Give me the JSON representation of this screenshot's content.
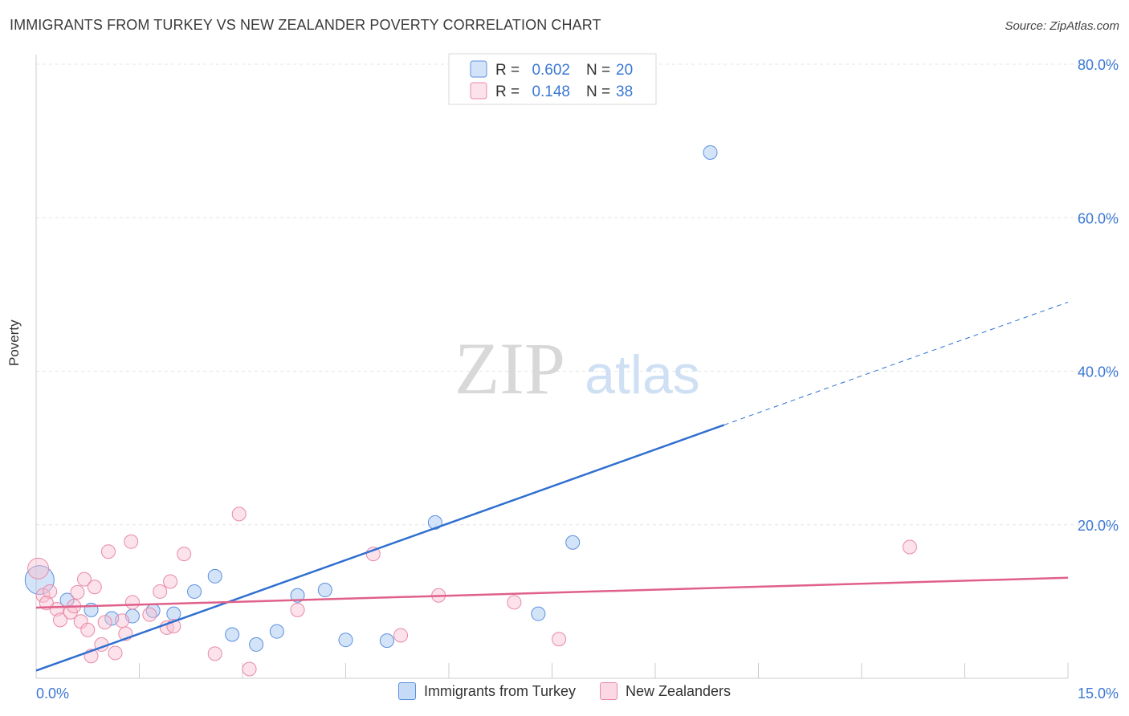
{
  "chart_data": {
    "type": "scatter",
    "title": "IMMIGRANTS FROM TURKEY VS NEW ZEALANDER POVERTY CORRELATION CHART",
    "source": "Source: ZipAtlas.com",
    "ylabel": "Poverty",
    "watermark": {
      "zip": "ZIP",
      "atlas": "atlas"
    },
    "xlim": [
      0,
      15
    ],
    "ylim": [
      0,
      80
    ],
    "x_tick_labels": [
      "0.0%",
      "15.0%"
    ],
    "y_ticks": [
      20,
      40,
      60,
      80
    ],
    "y_tick_labels": [
      "20.0%",
      "40.0%",
      "60.0%",
      "80.0%"
    ],
    "legend": {
      "r_label": "R =",
      "n_label": "N =",
      "entries": [
        {
          "r": "0.602",
          "n": "20"
        },
        {
          "r": "0.148",
          "n": "38"
        }
      ]
    },
    "series": [
      {
        "name": "Immigrants from Turkey",
        "color": "#5b8fe0",
        "fill": "rgba(160,195,240,0.45)",
        "line_color": "#2f6fd0",
        "trend": {
          "x0": 0,
          "y0": 1.0,
          "x1": 10.0,
          "y1": 33.0,
          "x_ext": 15,
          "y_ext": 49.0
        },
        "points": [
          {
            "x": 0.05,
            "y": 12.8,
            "r": 18
          },
          {
            "x": 0.45,
            "y": 10.2
          },
          {
            "x": 0.8,
            "y": 8.9
          },
          {
            "x": 1.1,
            "y": 7.8
          },
          {
            "x": 1.4,
            "y": 8.1
          },
          {
            "x": 1.7,
            "y": 8.8
          },
          {
            "x": 2.0,
            "y": 8.4
          },
          {
            "x": 2.3,
            "y": 11.3
          },
          {
            "x": 2.6,
            "y": 13.3
          },
          {
            "x": 2.85,
            "y": 5.7
          },
          {
            "x": 3.2,
            "y": 4.4
          },
          {
            "x": 3.5,
            "y": 6.1
          },
          {
            "x": 3.8,
            "y": 10.8
          },
          {
            "x": 4.2,
            "y": 11.5
          },
          {
            "x": 4.5,
            "y": 5.0
          },
          {
            "x": 5.1,
            "y": 4.9
          },
          {
            "x": 5.8,
            "y": 20.3
          },
          {
            "x": 7.3,
            "y": 8.4
          },
          {
            "x": 7.8,
            "y": 17.7
          },
          {
            "x": 9.8,
            "y": 68.5
          }
        ]
      },
      {
        "name": "New Zealanders",
        "color": "#e88aa8",
        "fill": "rgba(248,190,208,0.45)",
        "line_color": "#e0608a",
        "trend": {
          "x0": 0,
          "y0": 9.2,
          "x1": 15,
          "y1": 13.1
        },
        "points": [
          {
            "x": 0.03,
            "y": 14.3,
            "r": 13
          },
          {
            "x": 0.1,
            "y": 10.8
          },
          {
            "x": 0.2,
            "y": 11.3
          },
          {
            "x": 0.3,
            "y": 9.0
          },
          {
            "x": 0.35,
            "y": 7.6
          },
          {
            "x": 0.5,
            "y": 8.6
          },
          {
            "x": 0.55,
            "y": 9.4
          },
          {
            "x": 0.6,
            "y": 11.2
          },
          {
            "x": 0.65,
            "y": 7.4
          },
          {
            "x": 0.7,
            "y": 12.9
          },
          {
            "x": 0.75,
            "y": 6.3
          },
          {
            "x": 0.8,
            "y": 2.9
          },
          {
            "x": 0.85,
            "y": 11.9
          },
          {
            "x": 0.95,
            "y": 4.4
          },
          {
            "x": 1.0,
            "y": 7.3
          },
          {
            "x": 1.05,
            "y": 16.5
          },
          {
            "x": 1.15,
            "y": 3.3
          },
          {
            "x": 1.25,
            "y": 7.5
          },
          {
            "x": 1.3,
            "y": 5.8
          },
          {
            "x": 1.38,
            "y": 17.8
          },
          {
            "x": 1.4,
            "y": 9.9
          },
          {
            "x": 1.65,
            "y": 8.3
          },
          {
            "x": 1.8,
            "y": 11.3
          },
          {
            "x": 1.9,
            "y": 6.6
          },
          {
            "x": 1.95,
            "y": 12.6
          },
          {
            "x": 2.0,
            "y": 6.8
          },
          {
            "x": 2.15,
            "y": 16.2
          },
          {
            "x": 2.6,
            "y": 3.2
          },
          {
            "x": 2.95,
            "y": 21.4
          },
          {
            "x": 3.1,
            "y": 1.2
          },
          {
            "x": 3.8,
            "y": 8.9
          },
          {
            "x": 4.9,
            "y": 16.2
          },
          {
            "x": 5.3,
            "y": 5.6
          },
          {
            "x": 5.85,
            "y": 10.8
          },
          {
            "x": 6.95,
            "y": 9.9
          },
          {
            "x": 7.6,
            "y": 5.1
          },
          {
            "x": 12.7,
            "y": 17.1
          },
          {
            "x": 0.15,
            "y": 9.8
          }
        ]
      }
    ]
  }
}
